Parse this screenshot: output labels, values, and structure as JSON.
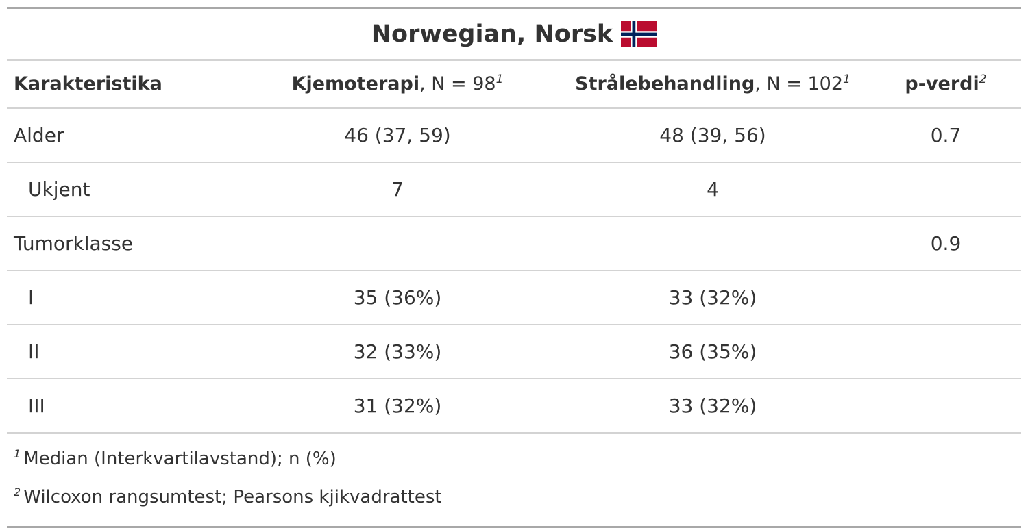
{
  "title": {
    "text": "Norwegian, Norsk",
    "flag_icon": "norway-flag-icon",
    "flag_colors": {
      "red": "#ba0c2f",
      "white": "#ffffff",
      "blue": "#00205b"
    }
  },
  "header": {
    "characteristic": "Karakteristika",
    "groups": [
      {
        "name": "Kjemoterapi",
        "n_label": ", N = 98",
        "footnote_mark": "1"
      },
      {
        "name": "Strålebehandling",
        "n_label": ", N = 102",
        "footnote_mark": "1"
      }
    ],
    "pvalue": {
      "name": "p-verdi",
      "footnote_mark": "2"
    }
  },
  "rows": [
    {
      "label": "Alder",
      "indent": false,
      "values": [
        "46 (37, 59)",
        "48 (39, 56)"
      ],
      "p": "0.7"
    },
    {
      "label": "Ukjent",
      "indent": true,
      "values": [
        "7",
        "4"
      ],
      "p": ""
    },
    {
      "label": "Tumorklasse",
      "indent": false,
      "values": [
        "",
        ""
      ],
      "p": "0.9"
    },
    {
      "label": "I",
      "indent": true,
      "values": [
        "35 (36%)",
        "33 (32%)"
      ],
      "p": ""
    },
    {
      "label": "II",
      "indent": true,
      "values": [
        "32 (33%)",
        "36 (35%)"
      ],
      "p": ""
    },
    {
      "label": "III",
      "indent": true,
      "values": [
        "31 (32%)",
        "33 (32%)"
      ],
      "p": ""
    }
  ],
  "footnotes": [
    {
      "mark": "1",
      "text": "Median (Interkvartilavstand); n (%)"
    },
    {
      "mark": "2",
      "text": "Wilcoxon rangsumtest; Pearsons kjikvadrattest"
    }
  ]
}
